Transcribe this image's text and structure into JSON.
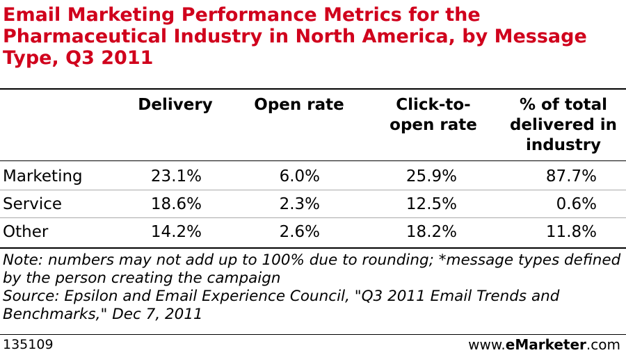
{
  "chart_data": {
    "type": "table",
    "title": "Email Marketing Performance Metrics for the Pharmaceutical Industry in North America, by Message Type, Q3 2011",
    "columns": [
      "Delivery",
      "Open rate",
      "Click-to-open rate",
      "% of total delivered in industry"
    ],
    "column_lines": [
      [
        "Delivery"
      ],
      [
        "Open rate"
      ],
      [
        "Click-to-",
        "open rate"
      ],
      [
        "% of total",
        "delivered in",
        "industry"
      ]
    ],
    "rows": [
      {
        "label": "Marketing",
        "values": [
          "23.1%",
          "6.0%",
          "25.9%",
          "87.7%"
        ]
      },
      {
        "label": "Service",
        "values": [
          "18.6%",
          "2.3%",
          "12.5%",
          "0.6%"
        ]
      },
      {
        "label": "Other",
        "values": [
          "14.2%",
          "2.6%",
          "18.2%",
          "11.8%"
        ]
      }
    ],
    "numeric_values": [
      [
        23.1,
        6.0,
        25.9,
        87.7
      ],
      [
        18.6,
        2.3,
        12.5,
        0.6
      ],
      [
        14.2,
        2.6,
        18.2,
        11.8
      ]
    ],
    "unit": "%"
  },
  "note": "Note: numbers may not add up to 100% due to rounding; *message types defined by the person creating the campaign",
  "source": "Source: Epsilon and Email Experience Council, \"Q3 2011 Email Trends and Benchmarks,\" Dec 7, 2011",
  "footer": {
    "chart_id": "135109",
    "brand_prefix": "www.",
    "brand_name": "eMarketer",
    "brand_suffix": ".com"
  },
  "colors": {
    "title": "#d0001c",
    "text": "#000000",
    "rule": "#000000"
  }
}
